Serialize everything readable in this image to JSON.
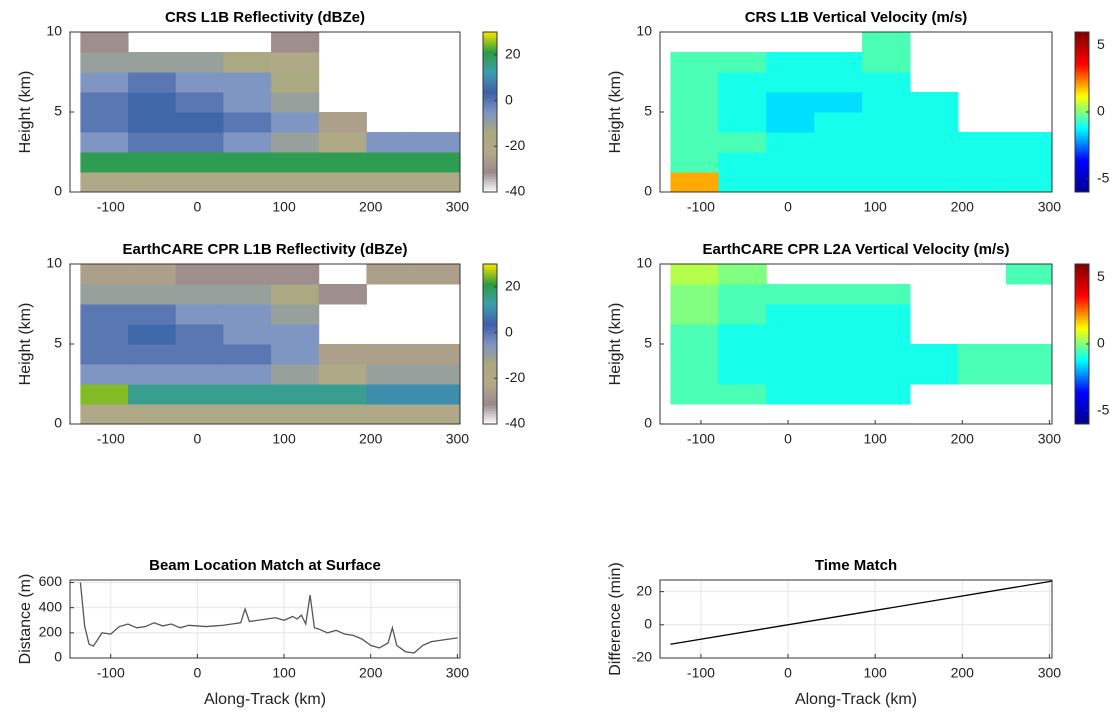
{
  "chart_data": [
    {
      "type": "heatmap",
      "title": "CRS L1B Reflectivity (dBZe)",
      "ylabel": "Height (km)",
      "xlim": [
        -147,
        303
      ],
      "xticks": [
        -100,
        0,
        100,
        200,
        300
      ],
      "ylim": [
        0,
        10
      ],
      "yticks": [
        0,
        5,
        10
      ],
      "x_edges": [
        -135,
        -80,
        -25,
        30,
        85,
        140,
        195,
        250,
        303
      ],
      "y_edges": [
        0,
        1.25,
        2.5,
        3.75,
        5,
        6.25,
        7.5,
        8.75,
        10
      ],
      "values": [
        [
          -20,
          -20,
          -20,
          -20,
          -20,
          -20,
          -20,
          -20
        ],
        [
          20,
          20,
          20,
          20,
          20,
          20,
          20,
          20
        ],
        [
          -5,
          0,
          0,
          -5,
          -10,
          -20,
          -5,
          -5
        ],
        [
          0,
          5,
          5,
          0,
          -5,
          -25,
          null,
          null
        ],
        [
          0,
          5,
          0,
          -5,
          -10,
          null,
          null,
          null
        ],
        [
          -5,
          0,
          -5,
          -5,
          -15,
          null,
          null,
          null
        ],
        [
          -10,
          -10,
          -10,
          -15,
          -20,
          null,
          null,
          null
        ],
        [
          -30,
          null,
          null,
          null,
          -30,
          null,
          null,
          null
        ]
      ],
      "clim": [
        -40,
        30
      ],
      "colorbar_ticks": [
        -40,
        -20,
        0,
        20
      ],
      "colormap": [
        "#ffffff",
        "#9a8a8e",
        "#b3a98a",
        "#aaa97f",
        "#7f95c2",
        "#3f5fa8",
        "#3d9fae",
        "#2c9c42",
        "#f5e400"
      ]
    },
    {
      "type": "heatmap",
      "title": "CRS L1B Vertical Velocity (m/s)",
      "ylabel": "Height (km)",
      "xlim": [
        -147,
        303
      ],
      "xticks": [
        -100,
        0,
        100,
        200,
        300
      ],
      "ylim": [
        0,
        10
      ],
      "yticks": [
        0,
        5,
        10
      ],
      "x_edges": [
        -135,
        -80,
        -25,
        30,
        85,
        140,
        195,
        250,
        303
      ],
      "y_edges": [
        0,
        1.25,
        2.5,
        3.75,
        5,
        6.25,
        7.5,
        8.75,
        10
      ],
      "values": [
        [
          2,
          -1,
          -1,
          -1,
          -1,
          -1,
          -1,
          -1
        ],
        [
          -0.5,
          -1,
          -1,
          -1,
          -1,
          -1,
          -1,
          -1
        ],
        [
          -0.5,
          -0.5,
          -1,
          -1,
          -1,
          -1,
          -1,
          -1
        ],
        [
          -0.5,
          -1,
          -1.5,
          -1,
          -1,
          -1,
          null,
          null
        ],
        [
          -0.5,
          -1,
          -1.5,
          -1.5,
          -1,
          -1,
          null,
          null
        ],
        [
          -0.5,
          -1,
          -1,
          -1,
          -1,
          null,
          null,
          null
        ],
        [
          -0.5,
          -0.5,
          -1,
          -1,
          -0.5,
          null,
          null,
          null
        ],
        [
          null,
          null,
          null,
          null,
          -0.5,
          null,
          null,
          null
        ]
      ],
      "clim": [
        -6,
        6
      ],
      "colorbar_ticks": [
        -5,
        0,
        5
      ],
      "colormap": [
        "#00008f",
        "#0000ff",
        "#00ffff",
        "#ffff00",
        "#ff0000",
        "#800000"
      ]
    },
    {
      "type": "heatmap",
      "title": "EarthCARE CPR L1B Reflectivity (dBZe)",
      "ylabel": "Height (km)",
      "xlim": [
        -147,
        303
      ],
      "xticks": [
        -100,
        0,
        100,
        200,
        300
      ],
      "ylim": [
        0,
        10
      ],
      "yticks": [
        0,
        5,
        10
      ],
      "x_edges": [
        -135,
        -80,
        -25,
        30,
        85,
        140,
        195,
        250,
        303
      ],
      "y_edges": [
        0,
        1.25,
        2.5,
        3.75,
        5,
        6.25,
        7.5,
        8.75,
        10
      ],
      "values": [
        [
          -20,
          -20,
          -20,
          -20,
          -20,
          -20,
          -20,
          -20
        ],
        [
          25,
          15,
          15,
          15,
          15,
          15,
          10,
          10
        ],
        [
          -5,
          -5,
          -5,
          -5,
          -10,
          -20,
          -10,
          -10
        ],
        [
          0,
          0,
          0,
          0,
          -5,
          -25,
          -25,
          -25
        ],
        [
          0,
          5,
          0,
          -5,
          -5,
          null,
          null,
          null
        ],
        [
          0,
          0,
          -5,
          -5,
          -10,
          null,
          null,
          null
        ],
        [
          -10,
          -10,
          -10,
          -10,
          -15,
          -30,
          null,
          null
        ],
        [
          -25,
          -25,
          -30,
          -30,
          -30,
          null,
          -25,
          -25
        ]
      ],
      "clim": [
        -40,
        30
      ],
      "colorbar_ticks": [
        -40,
        -20,
        0,
        20
      ],
      "colormap": [
        "#ffffff",
        "#9a8a8e",
        "#b3a98a",
        "#aaa97f",
        "#7f95c2",
        "#3f5fa8",
        "#3d9fae",
        "#2c9c42",
        "#f5e400"
      ]
    },
    {
      "type": "heatmap",
      "title": "EarthCARE CPR L2A Vertical Velocity (m/s)",
      "ylabel": "Height (km)",
      "xlim": [
        -147,
        303
      ],
      "xticks": [
        -100,
        0,
        100,
        200,
        300
      ],
      "ylim": [
        0,
        10
      ],
      "yticks": [
        0,
        5,
        10
      ],
      "x_edges": [
        -135,
        -80,
        -25,
        30,
        85,
        140,
        195,
        250,
        303
      ],
      "y_edges": [
        0,
        1.25,
        2.5,
        3.75,
        5,
        6.25,
        7.5,
        8.75,
        10
      ],
      "values": [
        [
          null,
          null,
          null,
          null,
          null,
          null,
          null,
          null
        ],
        [
          -0.5,
          -0.5,
          -1,
          -1,
          -1,
          null,
          null,
          null
        ],
        [
          -0.5,
          -1,
          -1,
          -1,
          -1,
          -1,
          -0.5,
          -0.5
        ],
        [
          -0.5,
          -1,
          -1,
          -1,
          -1,
          -1,
          -0.5,
          -0.5
        ],
        [
          -0.5,
          -1,
          -1,
          -1,
          -1,
          null,
          null,
          null
        ],
        [
          0,
          -0.5,
          -1,
          -1,
          -1,
          null,
          null,
          null
        ],
        [
          0,
          -0.5,
          -0.5,
          -0.5,
          -0.5,
          null,
          null,
          null
        ],
        [
          0.5,
          0,
          null,
          null,
          null,
          null,
          null,
          -0.5
        ]
      ],
      "clim": [
        -6,
        6
      ],
      "colorbar_ticks": [
        -5,
        0,
        5
      ],
      "colormap": [
        "#00008f",
        "#0000ff",
        "#00ffff",
        "#ffff00",
        "#ff0000",
        "#800000"
      ]
    },
    {
      "type": "line",
      "title": "Beam Location Match at Surface",
      "xlabel": "Along-Track (km)",
      "ylabel": "Distance (m)",
      "xlim": [
        -147,
        303
      ],
      "xticks": [
        -100,
        0,
        100,
        200,
        300
      ],
      "ylim": [
        0,
        620
      ],
      "yticks": [
        0,
        200,
        400,
        600
      ],
      "grid": true,
      "color": "#555555",
      "x": [
        -135,
        -130,
        -125,
        -120,
        -110,
        -100,
        -90,
        -80,
        -70,
        -60,
        -50,
        -40,
        -30,
        -20,
        -10,
        0,
        10,
        20,
        30,
        40,
        50,
        55,
        60,
        70,
        80,
        90,
        100,
        110,
        115,
        120,
        125,
        130,
        135,
        140,
        150,
        160,
        170,
        180,
        190,
        200,
        210,
        220,
        225,
        230,
        240,
        250,
        260,
        270,
        280,
        290,
        300
      ],
      "y": [
        600,
        250,
        110,
        95,
        200,
        190,
        250,
        270,
        240,
        250,
        280,
        255,
        270,
        240,
        260,
        255,
        250,
        255,
        260,
        270,
        280,
        390,
        290,
        300,
        310,
        320,
        300,
        330,
        310,
        340,
        270,
        500,
        240,
        230,
        200,
        220,
        190,
        180,
        150,
        100,
        80,
        120,
        240,
        100,
        50,
        40,
        100,
        130,
        140,
        150,
        160
      ]
    },
    {
      "type": "line",
      "title": "Time Match",
      "xlabel": "Along-Track (km)",
      "ylabel": "Difference (min)",
      "xlim": [
        -147,
        303
      ],
      "xticks": [
        -100,
        0,
        100,
        200,
        300
      ],
      "ylim": [
        -20,
        27
      ],
      "yticks": [
        -20,
        0,
        20
      ],
      "grid": true,
      "color": "#000000",
      "x": [
        -135,
        303
      ],
      "y": [
        -11.7,
        26.3
      ]
    }
  ]
}
